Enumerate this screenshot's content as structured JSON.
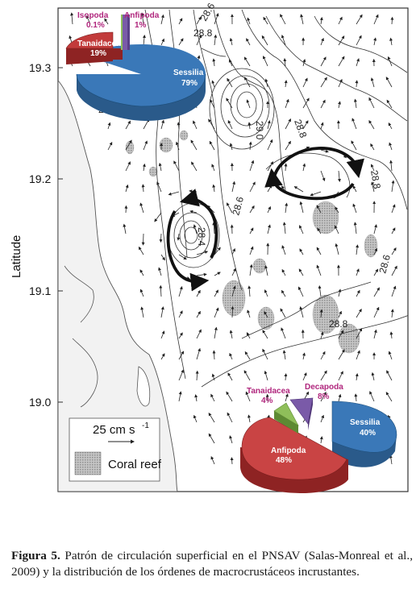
{
  "figure": {
    "y_axis_label": "Latitude",
    "y_ticks": [
      "19.3",
      "19.2",
      "19.1",
      "19.0"
    ],
    "contour_labels": [
      "28.6",
      "28.8",
      "28.6",
      "29.0",
      "28.8",
      "28.8",
      "28.4",
      "28.6",
      "28.6",
      "28.8"
    ],
    "legend": {
      "scale_label": "25 cm s",
      "scale_exp": "-1",
      "reef_label": "Coral reef"
    },
    "colors": {
      "sessilia": "#3a78b8",
      "tanaidacea": "#c23b3b",
      "anfipoda": "#c94444",
      "isopoda": "#8fbf5a",
      "decapoda": "#7a5aa8",
      "reef": "#b8b8b8",
      "land": "#f4f4f4"
    },
    "pie_top": {
      "slices": [
        {
          "name": "Sessilia",
          "pct": "79%",
          "value": 79
        },
        {
          "name": "Tanaidacea",
          "pct": "19%",
          "value": 19
        },
        {
          "name": "Isopoda",
          "pct": "0.1%",
          "value": 0.1
        },
        {
          "name": "Anfipoda",
          "pct": "1%",
          "value": 1
        }
      ]
    },
    "pie_bottom": {
      "slices": [
        {
          "name": "Sessilia",
          "pct": "40%",
          "value": 40
        },
        {
          "name": "Anfipoda",
          "pct": "48%",
          "value": 48
        },
        {
          "name": "Tanaidacea",
          "pct": "4%",
          "value": 4
        },
        {
          "name": "Decapoda",
          "pct": "8%",
          "value": 8
        }
      ]
    }
  },
  "caption": {
    "label": "Figura 5.",
    "text": " Patrón de circulación superficial en el PNSAV (Salas-Monreal et al., 2009) y la distribución de los órdenes de macrocrustáceos incrustantes."
  }
}
